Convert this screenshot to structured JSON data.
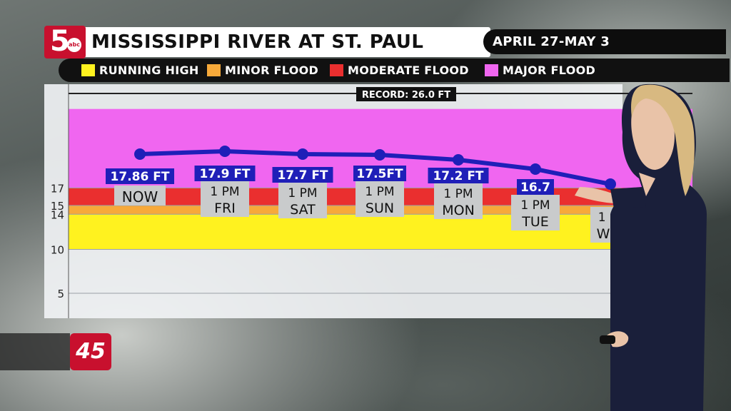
{
  "header": {
    "title": "MISSISSIPPI RIVER AT ST. PAUL",
    "date_range": "APRIL 27-MAY 3",
    "station_logo": "5abc",
    "channel_bug": "45"
  },
  "legend": [
    {
      "label": "RUNNING HIGH",
      "color": "#fff21f"
    },
    {
      "label": "MINOR FLOOD",
      "color": "#f7a93a"
    },
    {
      "label": "MODERATE FLOOD",
      "color": "#ea2f2f"
    },
    {
      "label": "MAJOR FLOOD",
      "color": "#f066f0"
    }
  ],
  "chart_data": {
    "type": "line",
    "title": "MISSISSIPPI RIVER AT ST. PAUL",
    "ylim": [
      0,
      27
    ],
    "yticks": [
      5,
      10,
      14,
      15,
      17
    ],
    "record": {
      "label": "RECORD: 26.0 FT",
      "value": 26.0
    },
    "bands": [
      {
        "name": "RUNNING HIGH",
        "from": 10,
        "to": 14,
        "color": "#fff21f"
      },
      {
        "name": "MINOR FLOOD",
        "from": 14,
        "to": 15,
        "color": "#f7a93a"
      },
      {
        "name": "MODERATE FLOOD",
        "from": 15,
        "to": 17,
        "color": "#ea2f2f"
      },
      {
        "name": "MAJOR FLOOD",
        "from": 17,
        "to": 26,
        "color": "#f066f0"
      }
    ],
    "points": [
      {
        "value": 17.86,
        "value_label": "17.86 FT",
        "time": "",
        "day": "NOW"
      },
      {
        "value": 17.9,
        "value_label": "17.9 FT",
        "time": "1 PM",
        "day": "FRI"
      },
      {
        "value": 17.7,
        "value_label": "17.7 FT",
        "time": "1 PM",
        "day": "SAT"
      },
      {
        "value": 17.5,
        "value_label": "17.5FT",
        "time": "1 PM",
        "day": "SUN"
      },
      {
        "value": 17.2,
        "value_label": "17.2 FT",
        "time": "1 PM",
        "day": "MON"
      },
      {
        "value": 16.7,
        "value_label": "16.7",
        "time": "1 PM",
        "day": "TUE"
      },
      {
        "value": 16.2,
        "value_label": "",
        "time": "1 P",
        "day": "WE"
      }
    ],
    "line_color": "#1f1fb8"
  }
}
